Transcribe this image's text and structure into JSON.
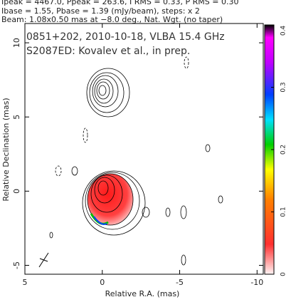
{
  "chart_data": {
    "type": "image",
    "header": [
      "Ipeak = 4467.0, Ppeak = 263.6, I RMS = 0.33, P RMS = 0.30",
      "Ibase = 1.55, Pbase = 1.39 (mJy/beam), steps: x 2",
      "Beam: 1.08x0.50 mas at −8.0 deg., Nat. Wgt. (no taper)"
    ],
    "annotations": [
      "0851+202, 2010-10-18, VLBA 15.4 GHz",
      "S2087ED: Kovalev et al., in prep."
    ],
    "xlabel": "Relative R.A. (mas)",
    "ylabel": "Relative Declination (mas)",
    "xlim": [
      5,
      -10.4
    ],
    "xticks": [
      5,
      0,
      -5,
      -10
    ],
    "ylim": [
      -5.6,
      11.3
    ],
    "yticks": [
      -5,
      0,
      5,
      10
    ],
    "colorbar": {
      "lim": [
        0,
        0.4
      ],
      "ticks": [
        0,
        0.1,
        0.2,
        0.3,
        0.4
      ]
    }
  }
}
